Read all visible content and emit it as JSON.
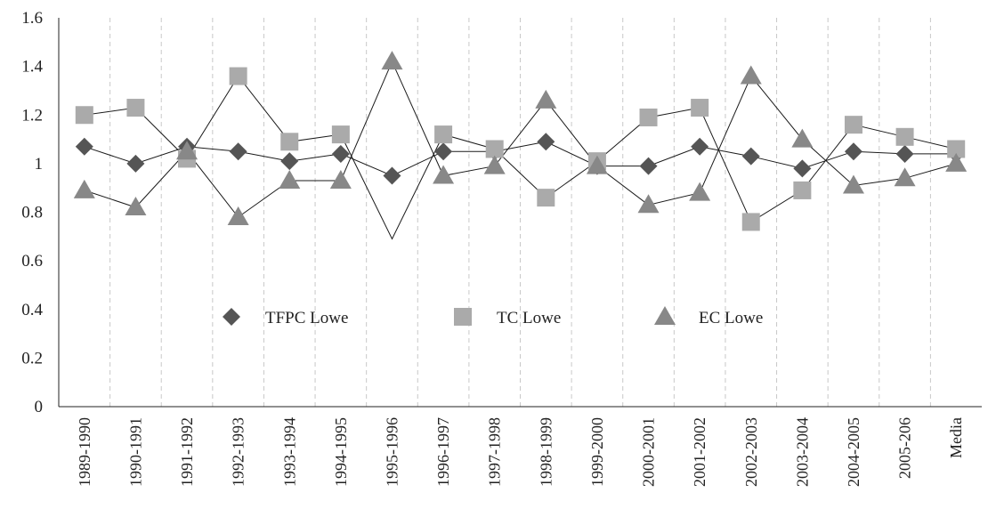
{
  "chart_data": {
    "type": "line",
    "categories": [
      "1989-1990",
      "1990-1991",
      "1991-1992",
      "1992-1993",
      "1993-1994",
      "1994-1995",
      "1995-1996",
      "1996-1997",
      "1997-1998",
      "1998-1999",
      "1999-2000",
      "2000-2001",
      "2001-2002",
      "2002-2003",
      "2003-2004",
      "2004-2005",
      "2005-206",
      "Media"
    ],
    "series": [
      {
        "name": "TFPC Lowe",
        "marker": "diamond",
        "color": "#555555",
        "values": [
          1.07,
          1.0,
          1.07,
          1.05,
          1.01,
          1.04,
          0.95,
          1.05,
          1.05,
          1.09,
          0.99,
          0.99,
          1.07,
          1.03,
          0.98,
          1.05,
          1.04,
          1.04
        ]
      },
      {
        "name": "TC Lowe",
        "marker": "square",
        "color": "#aaaaaa",
        "values": [
          1.2,
          1.23,
          1.02,
          1.36,
          1.09,
          1.12,
          0.69,
          1.12,
          1.06,
          0.86,
          1.01,
          1.19,
          1.23,
          0.76,
          0.89,
          1.16,
          1.11,
          1.06
        ]
      },
      {
        "name": "EC Lowe",
        "marker": "triangle",
        "color": "#888888",
        "values": [
          0.89,
          0.82,
          1.05,
          0.78,
          0.93,
          0.93,
          1.42,
          0.95,
          0.99,
          1.26,
          0.99,
          0.83,
          0.88,
          1.36,
          1.1,
          0.91,
          0.94,
          1.0
        ]
      }
    ],
    "hidden_points": [
      [
        1,
        6
      ]
    ],
    "ylim": [
      0,
      1.6
    ],
    "yticks": [
      "0",
      "0.2",
      "0.4",
      "0.6",
      "0.8",
      "1",
      "1.2",
      "1.4",
      "1.6"
    ],
    "grid": "vertical dashed",
    "legend_position": "center",
    "title": "",
    "xlabel": "",
    "ylabel": ""
  }
}
